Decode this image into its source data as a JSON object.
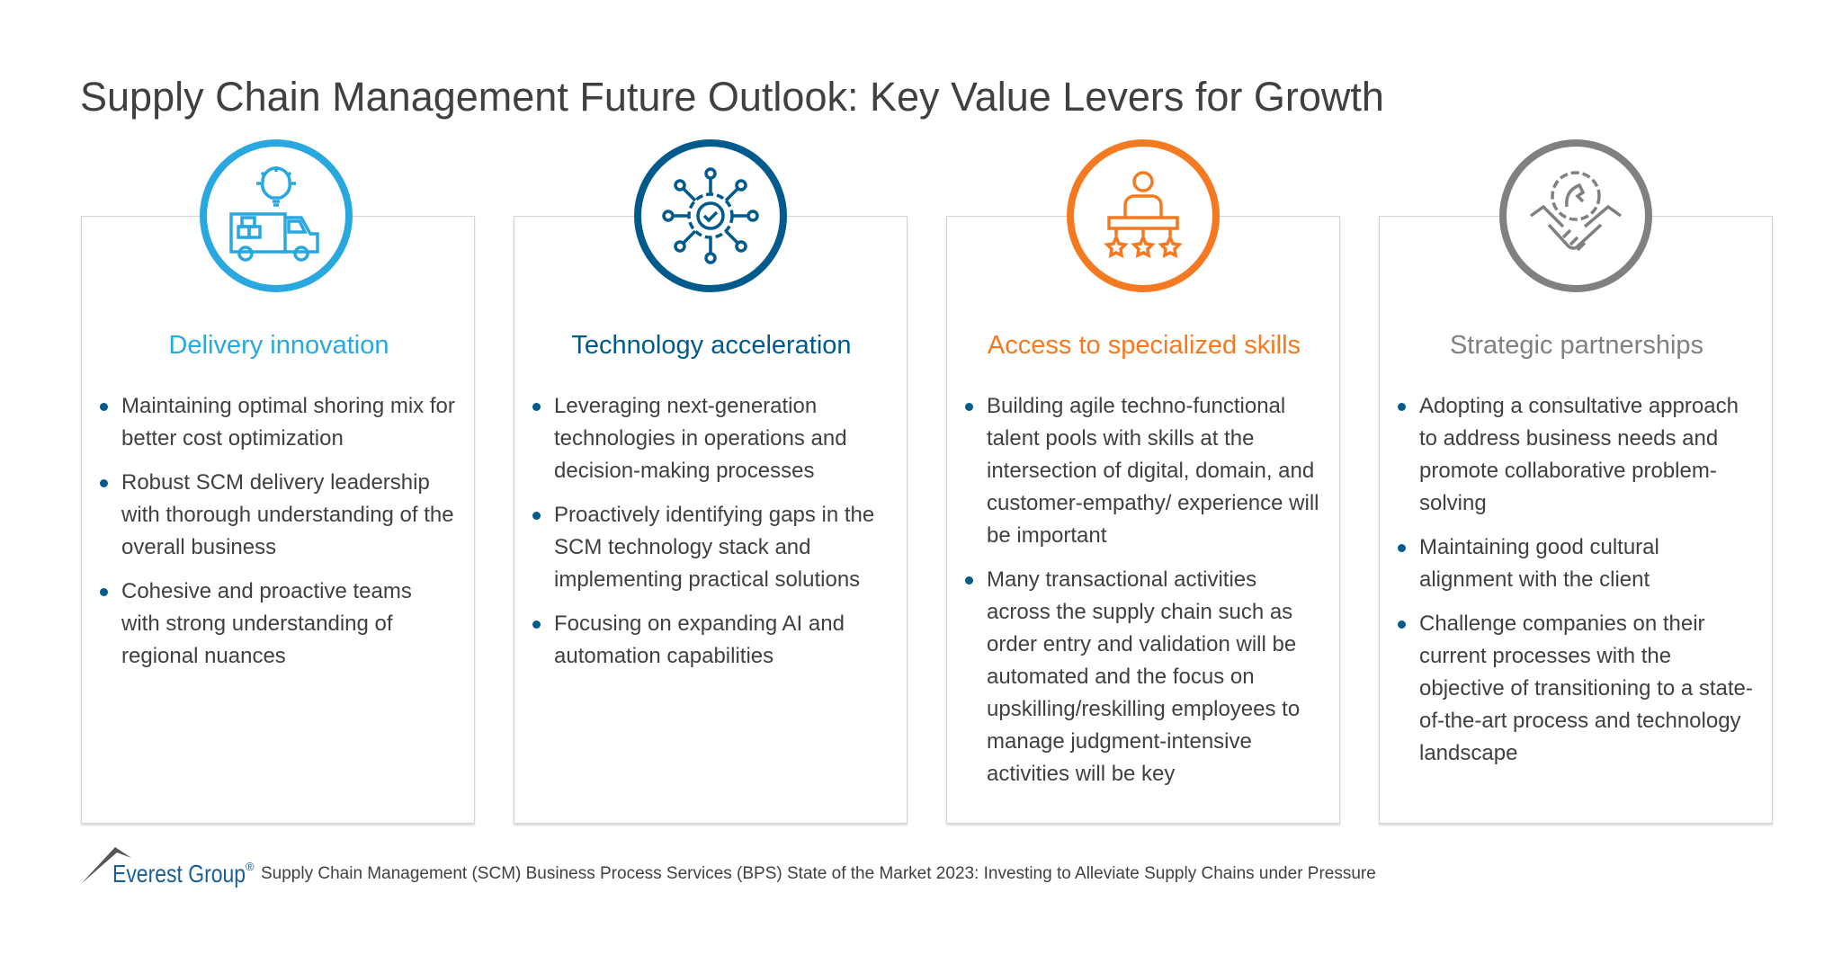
{
  "title": "Supply Chain Management Future Outlook: Key Value Levers for Growth",
  "colors": {
    "blue": "#29a8e0",
    "dark_blue": "#005a8c",
    "orange": "#f47920",
    "gray": "#808080"
  },
  "cards": [
    {
      "icon": "delivery-truck-lightbulb-icon",
      "heading": "Delivery innovation",
      "bullets": [
        "Maintaining optimal shoring mix for better cost optimization",
        "Robust SCM delivery leadership with thorough understanding of the overall business",
        "Cohesive and proactive teams with strong understanding of regional nuances"
      ]
    },
    {
      "icon": "gear-network-icon",
      "heading": "Technology acceleration",
      "bullets": [
        "Leveraging next-generation technologies in operations and decision-making processes",
        "Proactively identifying gaps in the SCM technology stack and implementing practical solutions",
        "Focusing on expanding AI and automation capabilities"
      ]
    },
    {
      "icon": "person-stars-icon",
      "heading": "Access to specialized skills",
      "bullets": [
        "Building agile techno-functional talent pools with skills at the intersection of digital, domain, and customer-empathy/ experience will be important",
        "Many transactional activities across the supply chain such as order entry and validation will be automated and the focus on upskilling/reskilling employees to manage judgment-intensive activities will be key"
      ]
    },
    {
      "icon": "handshake-gear-icon",
      "heading": "Strategic partnerships",
      "bullets": [
        "Adopting a consultative approach to address business needs and promote collaborative problem-solving",
        "Maintaining good cultural alignment with the client",
        "Challenge companies on their current processes with the objective of transitioning to a state-of-the-art process and technology landscape"
      ]
    }
  ],
  "footer": {
    "logo": "Everest Group",
    "registered": "®",
    "source": "Supply Chain Management (SCM) Business Process Services (BPS) State of the Market 2023: Investing to Alleviate Supply Chains under Pressure"
  }
}
